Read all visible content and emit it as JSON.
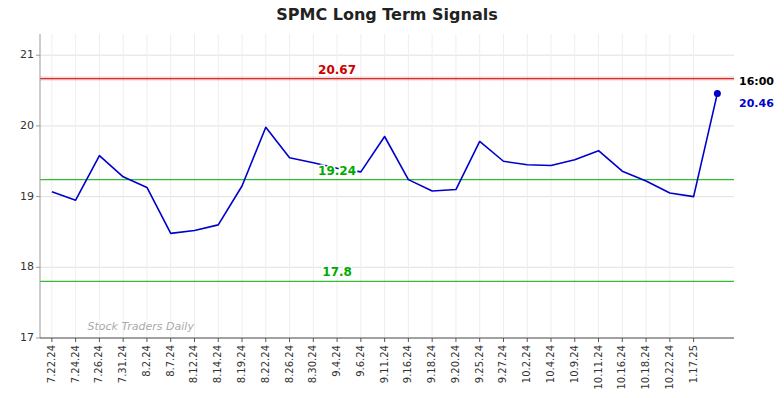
{
  "chart_data": {
    "type": "line",
    "title": "SPMC Long Term Signals",
    "categories": [
      "7.22.24",
      "7.24.24",
      "7.26.24",
      "7.31.24",
      "8.2.24",
      "8.7.24",
      "8.12.24",
      "8.14.24",
      "8.19.24",
      "8.22.24",
      "8.26.24",
      "8.30.24",
      "9.4.24",
      "9.6.24",
      "9.11.24",
      "9.16.24",
      "9.18.24",
      "9.20.24",
      "9.25.24",
      "9.27.24",
      "10.2.24",
      "10.4.24",
      "10.9.24",
      "10.11.24",
      "10.16.24",
      "10.18.24",
      "10.22.24",
      "1.17.25",
      null
    ],
    "values": [
      19.07,
      18.95,
      19.58,
      19.28,
      19.13,
      18.48,
      18.52,
      18.6,
      19.15,
      19.98,
      19.55,
      19.48,
      19.4,
      19.35,
      19.85,
      19.24,
      19.08,
      19.1,
      19.78,
      19.5,
      19.45,
      19.44,
      19.52,
      19.65,
      19.36,
      19.22,
      19.05,
      19.0,
      20.46
    ],
    "color": "#0000cc",
    "ylim": [
      17.0,
      21.3
    ],
    "yticks": [
      17,
      18,
      19,
      20,
      21
    ],
    "grid": true,
    "reference_lines": [
      {
        "value": 20.67,
        "label": "20.67",
        "color": "#cc0000"
      },
      {
        "value": 19.24,
        "label": "19.24",
        "color": "#00aa00"
      },
      {
        "value": 17.8,
        "label": "17.8",
        "color": "#00aa00"
      }
    ],
    "annotations": [
      {
        "text": "16:00"
      },
      {
        "text": "20.46",
        "value": 20.46
      },
      {
        "text": "Stock Traders Daily"
      }
    ]
  }
}
